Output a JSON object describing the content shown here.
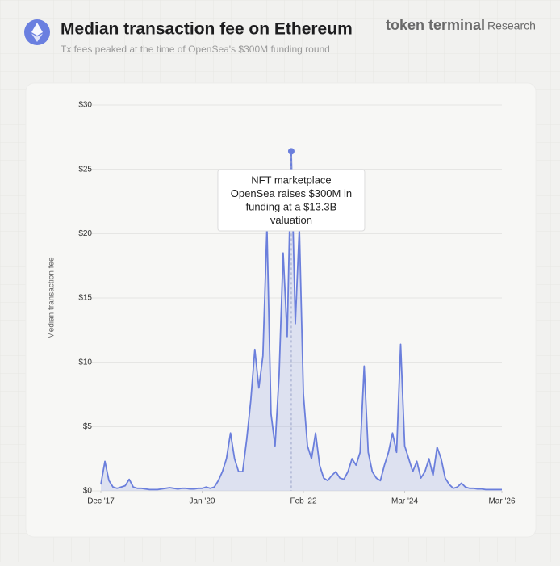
{
  "brand": {
    "name": "token terminal",
    "suffix": "Research"
  },
  "chart_data": {
    "type": "area",
    "title": "Median transaction fee on Ethereum",
    "subtitle": "Tx fees peaked at the time of OpenSea's $300M funding round",
    "y_label": "Median transaction fee",
    "color": "#6b7fdc",
    "x": [
      "2017-12",
      "2018-01",
      "2018-02",
      "2018-03",
      "2018-04",
      "2018-05",
      "2018-06",
      "2018-07",
      "2018-08",
      "2018-09",
      "2018-10",
      "2018-11",
      "2018-12",
      "2019-01",
      "2019-02",
      "2019-03",
      "2019-04",
      "2019-05",
      "2019-06",
      "2019-07",
      "2019-08",
      "2019-09",
      "2019-10",
      "2019-11",
      "2019-12",
      "2020-01",
      "2020-02",
      "2020-03",
      "2020-04",
      "2020-05",
      "2020-06",
      "2020-07",
      "2020-08",
      "2020-09",
      "2020-10",
      "2020-11",
      "2020-12",
      "2021-01",
      "2021-02",
      "2021-03",
      "2021-04",
      "2021-05",
      "2021-06",
      "2021-07",
      "2021-08",
      "2021-09",
      "2021-10",
      "2021-11",
      "2021-12",
      "2022-01",
      "2022-02",
      "2022-03",
      "2022-04",
      "2022-05",
      "2022-06",
      "2022-07",
      "2022-08",
      "2022-09",
      "2022-10",
      "2022-11",
      "2022-12",
      "2023-01",
      "2023-02",
      "2023-03",
      "2023-04",
      "2023-05",
      "2023-06",
      "2023-07",
      "2023-08",
      "2023-09",
      "2023-10",
      "2023-11",
      "2023-12",
      "2024-01",
      "2024-02",
      "2024-03",
      "2024-04",
      "2024-05",
      "2024-06",
      "2024-07",
      "2024-08",
      "2024-09",
      "2024-10",
      "2024-11",
      "2024-12",
      "2025-01",
      "2025-02",
      "2025-03",
      "2025-04",
      "2025-05",
      "2025-06",
      "2025-07",
      "2025-08",
      "2025-09",
      "2025-10",
      "2025-11",
      "2025-12",
      "2026-01",
      "2026-02",
      "2026-03"
    ],
    "values": [
      0.5,
      2.3,
      0.8,
      0.3,
      0.2,
      0.3,
      0.4,
      0.9,
      0.3,
      0.2,
      0.2,
      0.15,
      0.1,
      0.1,
      0.1,
      0.15,
      0.2,
      0.25,
      0.2,
      0.15,
      0.2,
      0.2,
      0.15,
      0.15,
      0.2,
      0.2,
      0.3,
      0.2,
      0.3,
      0.8,
      1.5,
      2.5,
      4.5,
      2.5,
      1.5,
      1.5,
      4.0,
      7.0,
      11.0,
      8.0,
      10.5,
      20.5,
      6.0,
      3.5,
      9.0,
      18.5,
      12.0,
      26.4,
      13.0,
      20.5,
      7.5,
      3.5,
      2.5,
      4.5,
      2.0,
      1.0,
      0.8,
      1.2,
      1.5,
      1.0,
      0.9,
      1.5,
      2.5,
      2.0,
      3.0,
      9.7,
      3.0,
      1.5,
      1.0,
      0.8,
      2.0,
      3.0,
      4.5,
      3.0,
      11.4,
      3.5,
      2.5,
      1.5,
      2.3,
      1.0,
      1.5,
      2.5,
      1.2,
      3.4,
      2.5,
      1.0,
      0.5,
      0.2,
      0.3,
      0.6,
      0.3,
      0.2,
      0.2,
      0.15,
      0.15,
      0.1,
      0.1,
      0.1,
      0.1,
      0.1
    ],
    "xlim": [
      "2017-12",
      "2026-03"
    ],
    "xticks": [
      {
        "value": "2017-12",
        "label": "Dec '17"
      },
      {
        "value": "2020-01",
        "label": "Jan '20"
      },
      {
        "value": "2022-02",
        "label": "Feb '22"
      },
      {
        "value": "2024-03",
        "label": "Mar '24"
      },
      {
        "value": "2026-03",
        "label": "Mar '26"
      }
    ],
    "ylim": [
      0,
      30
    ],
    "yticks": [
      {
        "value": 0,
        "label": "$0"
      },
      {
        "value": 5,
        "label": "$5"
      },
      {
        "value": 10,
        "label": "$10"
      },
      {
        "value": 15,
        "label": "$15"
      },
      {
        "value": 20,
        "label": "$20"
      },
      {
        "value": 25,
        "label": "$25"
      },
      {
        "value": 30,
        "label": "$30"
      }
    ],
    "grid": true,
    "annotation": {
      "x": "2021-11",
      "lines": [
        "NFT marketplace",
        "OpenSea raises $300M in",
        "funding at a $13.3B",
        "valuation"
      ]
    }
  }
}
